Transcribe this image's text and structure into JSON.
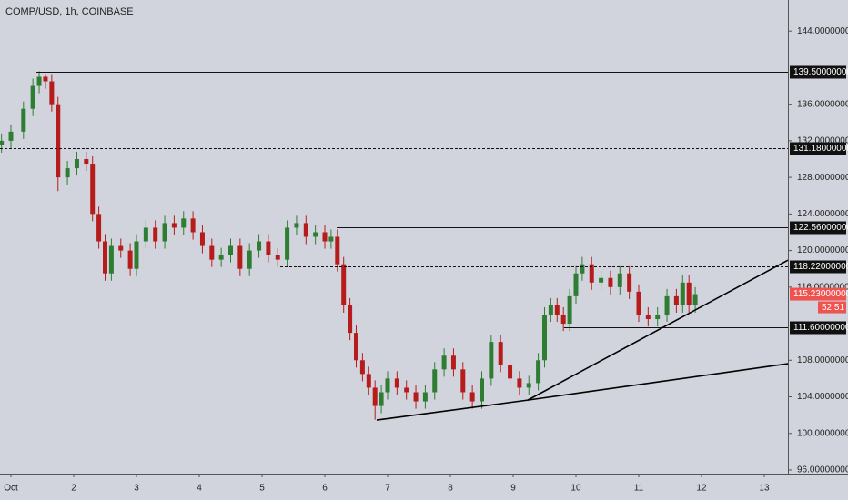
{
  "chart_data": {
    "type": "candlestick",
    "title": "COMP/USD, 1h, COINBASE",
    "xlim": [
      0.826,
      13.377
    ],
    "xticks": [
      {
        "value": 1,
        "label": "Oct"
      },
      2,
      3,
      4,
      5,
      6,
      7,
      8,
      9,
      10,
      11,
      12,
      13
    ],
    "ylim": [
      95.6,
      147.4
    ],
    "yticks": [
      {
        "value": 96,
        "label": "96.00000000"
      },
      {
        "value": 100,
        "label": "100.00000000"
      },
      {
        "value": 104,
        "label": "104.00000000"
      },
      {
        "value": 108,
        "label": "108.00000000"
      },
      {
        "value": 116,
        "label": "116.00000000"
      },
      {
        "value": 120,
        "label": "120.00000000"
      },
      {
        "value": 124,
        "label": "124.00000000"
      },
      {
        "value": 128,
        "label": "128.00000000"
      },
      {
        "value": 132,
        "label": "132.00000000"
      },
      {
        "value": 136,
        "label": "136.00000000"
      },
      {
        "value": 144,
        "label": "144.00000000"
      }
    ],
    "up_color": "#2e7d32",
    "down_color": "#b71c1c",
    "x": [
      0.85,
      1.0,
      1.2,
      1.35,
      1.45,
      1.55,
      1.65,
      1.75,
      1.9,
      2.05,
      2.2,
      2.3,
      2.4,
      2.5,
      2.6,
      2.75,
      2.9,
      3.0,
      3.15,
      3.3,
      3.45,
      3.6,
      3.75,
      3.9,
      4.05,
      4.2,
      4.35,
      4.5,
      4.65,
      4.8,
      4.95,
      5.1,
      5.25,
      5.4,
      5.55,
      5.7,
      5.85,
      6.0,
      6.1,
      6.2,
      6.3,
      6.4,
      6.5,
      6.6,
      6.7,
      6.8,
      6.9,
      7.0,
      7.15,
      7.3,
      7.45,
      7.6,
      7.75,
      7.9,
      8.05,
      8.2,
      8.35,
      8.5,
      8.65,
      8.8,
      8.95,
      9.1,
      9.25,
      9.4,
      9.5,
      9.6,
      9.7,
      9.8,
      9.9,
      10.0,
      10.1,
      10.25,
      10.4,
      10.55,
      10.7,
      10.85,
      11.0,
      11.15,
      11.3,
      11.45,
      11.6,
      11.7,
      11.8,
      11.9
    ],
    "open": [
      131.5,
      132,
      133,
      135.5,
      138,
      139,
      138.5,
      136,
      128,
      129,
      130,
      129.5,
      124,
      121,
      117.5,
      120.5,
      120,
      118,
      121,
      122.5,
      121,
      123,
      122.5,
      123.5,
      122,
      120.5,
      119,
      119.5,
      120.5,
      118,
      120,
      121,
      119.5,
      119,
      122.5,
      123,
      121.5,
      122,
      121,
      121.5,
      118.5,
      114,
      111,
      108,
      106.5,
      105,
      103,
      104.5,
      106,
      105,
      104.5,
      103.5,
      104.5,
      107,
      108.5,
      107,
      104.5,
      103.5,
      106,
      110,
      107.5,
      106,
      105,
      105.5,
      108,
      113,
      114,
      113,
      112,
      115,
      117.5,
      118.5,
      116.5,
      117,
      116,
      117.5,
      115.5,
      113,
      112.5,
      113,
      115,
      114,
      116.5,
      114
    ],
    "high": [
      132.8,
      133.8,
      136.3,
      138.8,
      139.6,
      139.3,
      139.3,
      136.8,
      129.8,
      130.8,
      130.8,
      130.3,
      124.8,
      121.8,
      121.3,
      121.3,
      120.8,
      121.8,
      123.3,
      123.3,
      123.8,
      123.8,
      124.3,
      124.3,
      122.8,
      121.3,
      120.3,
      121.3,
      121.3,
      120.8,
      121.8,
      121.8,
      120.3,
      123.3,
      123.8,
      123.8,
      122.8,
      122.8,
      122.3,
      122.3,
      119.3,
      114.8,
      111.8,
      108.8,
      107.3,
      105.8,
      105.3,
      106.8,
      106.8,
      105.8,
      105.3,
      105.3,
      107.8,
      109.3,
      109.3,
      107.8,
      105.3,
      106.8,
      110.8,
      110.8,
      108.3,
      106.8,
      106.3,
      108.8,
      113.8,
      114.8,
      114.8,
      113.8,
      115.8,
      118.3,
      119.3,
      119.3,
      117.8,
      117.8,
      118.3,
      118.3,
      116.3,
      113.8,
      113.8,
      115.8,
      115.8,
      117.3,
      117.3,
      116.0
    ],
    "low": [
      130.7,
      131.2,
      132.2,
      134.7,
      137.2,
      137.7,
      135.2,
      126.5,
      127.2,
      128.2,
      128.7,
      123.2,
      120.2,
      116.7,
      116.7,
      119.2,
      117.2,
      117.2,
      120.2,
      120.2,
      120.2,
      121.7,
      121.7,
      121.2,
      119.7,
      118.2,
      118.2,
      118.7,
      117.2,
      117.2,
      119.2,
      118.7,
      118.2,
      118.2,
      121.7,
      120.7,
      120.7,
      120.2,
      120.2,
      117.7,
      113.2,
      110.2,
      107.2,
      105.7,
      104.2,
      101.5,
      102.2,
      103.7,
      104.2,
      103.7,
      102.7,
      102.7,
      103.7,
      106.2,
      106.2,
      103.7,
      102.7,
      102.7,
      105.2,
      106.7,
      105.2,
      104.2,
      104.2,
      104.7,
      107.2,
      112.2,
      112.2,
      111.2,
      111.2,
      114.2,
      116.7,
      115.7,
      115.7,
      115.2,
      115.2,
      114.7,
      112.2,
      111.7,
      111.7,
      112.2,
      113.2,
      113.2,
      113.2,
      113.2
    ],
    "close": [
      132,
      133,
      135.5,
      138,
      139,
      138.5,
      136,
      128,
      129,
      130,
      129.5,
      124,
      121,
      117.5,
      120.5,
      120,
      118,
      121,
      122.5,
      121,
      123,
      122.5,
      123.5,
      122,
      120.5,
      119,
      119.5,
      120.5,
      118,
      120,
      121,
      119.5,
      119,
      122.5,
      123,
      121.5,
      122,
      121,
      121.5,
      118.5,
      114,
      111,
      108,
      106.5,
      105,
      103,
      104.5,
      106,
      105,
      104.5,
      103.5,
      104.5,
      107,
      108.5,
      107,
      104.5,
      103.5,
      106,
      110,
      107.5,
      106,
      105,
      105.5,
      108,
      113,
      114,
      113,
      112,
      115,
      117.5,
      118.5,
      116.5,
      117,
      116,
      117.5,
      115.5,
      113,
      112.5,
      113,
      115,
      114,
      116.5,
      114,
      115.23
    ],
    "levels": [
      {
        "value": 139.5,
        "label": "139.50000000",
        "x_start": 1.406,
        "dashed": false
      },
      {
        "value": 131.18,
        "label": "131.18000000",
        "x_start": 0.826,
        "dashed": true
      },
      {
        "value": 122.56,
        "label": "122.56000000",
        "x_start": 6.19,
        "dashed": false
      },
      {
        "value": 118.22,
        "label": "118.22000000",
        "x_start": 5.29,
        "dashed": true
      },
      {
        "value": 111.6,
        "label": "111.60000000",
        "x_start": 9.81,
        "dashed": false
      }
    ],
    "trendlines": [
      {
        "x": [
          6.826,
          9.232,
          13.377
        ],
        "y": [
          101.46,
          103.64,
          107.62
        ]
      },
      {
        "x": [
          9.232,
          13.377
        ],
        "y": [
          103.64,
          118.95
        ]
      }
    ],
    "last_price": {
      "value": 115.23,
      "label": "115.23000000"
    },
    "countdown": "52:51"
  }
}
